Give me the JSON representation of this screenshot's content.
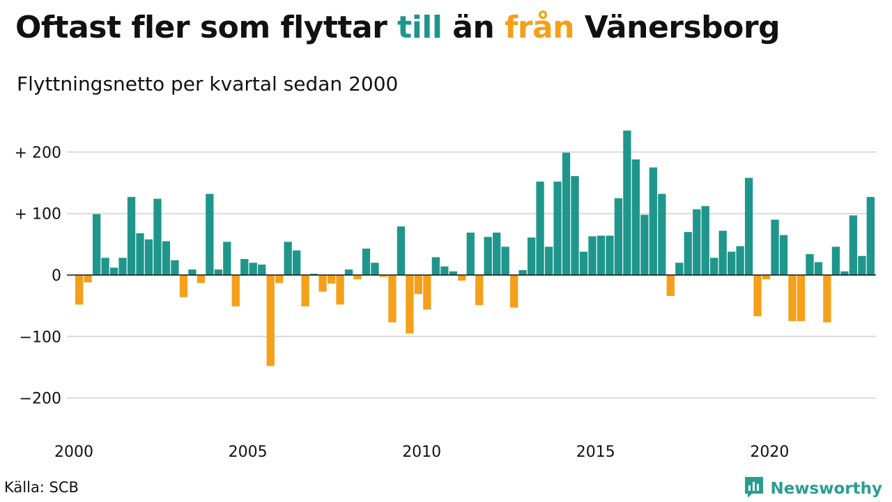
{
  "title": {
    "pre": "Oftast fler som flyttar ",
    "till": "till",
    "mid": " än ",
    "fran": "från",
    "post": " Vänersborg"
  },
  "subtitle": "Flyttningsnetto per kvartal sedan 2000",
  "source": "Källa: SCB",
  "brand": {
    "name": "Newsworthy",
    "icon": "chart-logo-icon"
  },
  "colors": {
    "positive": "#1f968b",
    "negative": "#f5a01a",
    "gridline": "#d9d9d9",
    "zero": "#111111"
  },
  "chart_data": {
    "type": "bar",
    "title": "Oftast fler som flyttar till än från Vänersborg",
    "subtitle": "Flyttningsnetto per kvartal sedan 2000",
    "x_start_year": 2000,
    "quarters_per_year": 4,
    "x_ticks": [
      {
        "year": 2000,
        "label": "2000"
      },
      {
        "year": 2005,
        "label": "2005"
      },
      {
        "year": 2010,
        "label": "2010"
      },
      {
        "year": 2015,
        "label": "2015"
      },
      {
        "year": 2020,
        "label": "2020"
      }
    ],
    "y_ticks": [
      {
        "value": 200,
        "label": "+ 200"
      },
      {
        "value": 100,
        "label": "+ 100"
      },
      {
        "value": 0,
        "label": "0"
      },
      {
        "value": -100,
        "label": "−100"
      },
      {
        "value": -200,
        "label": "−200"
      }
    ],
    "ylim": [
      -250,
      250
    ],
    "grid": true,
    "values": [
      -48,
      -12,
      99,
      28,
      12,
      28,
      127,
      68,
      58,
      124,
      55,
      24,
      -36,
      9,
      -13,
      132,
      9,
      54,
      -51,
      26,
      20,
      17,
      -148,
      -13,
      54,
      40,
      -51,
      2,
      -27,
      -14,
      -48,
      9,
      -7,
      43,
      20,
      -3,
      -77,
      79,
      -95,
      -31,
      -56,
      29,
      14,
      6,
      -9,
      69,
      -49,
      62,
      69,
      46,
      -53,
      8,
      61,
      152,
      46,
      152,
      199,
      161,
      38,
      63,
      64,
      64,
      125,
      235,
      188,
      98,
      175,
      132,
      -34,
      20,
      70,
      107,
      112,
      28,
      72,
      38,
      47,
      158,
      -67,
      -7,
      90,
      65,
      -75,
      -75,
      34,
      21,
      -77,
      46,
      6,
      97,
      31,
      127
    ]
  }
}
